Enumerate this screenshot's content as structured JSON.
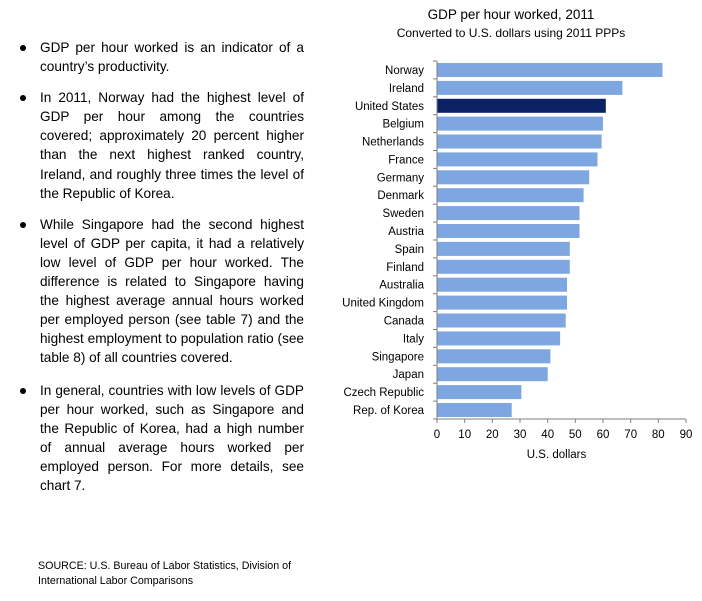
{
  "bullets": [
    "GDP per hour worked is an indicator of a country’s productivity.",
    "In 2011, Norway had the highest level of GDP per hour among the countries covered; approximately 20 percent higher than the next highest ranked country, Ireland, and roughly three times the level of the Republic of Korea.",
    "While Singapore had the second highest level of GDP per capita, it had a relatively low level of GDP per hour worked. The difference is related to Singapore having the highest average annual hours worked per employed person (see table 7) and the highest employment to population ratio (see table 8) of all countries covered.",
    "In general, countries with low levels of GDP per hour worked, such as Singapore and the Republic of Korea, had a high number of annual average hours worked per employed person. For more details, see chart 7."
  ],
  "source_line1": "SOURCE: U.S. Bureau of Labor Statistics, Division of",
  "source_line2": "International Labor Comparisons",
  "chart_data": {
    "type": "bar",
    "orientation": "horizontal",
    "title": "GDP per hour worked, 2011",
    "subtitle": "Converted to U.S. dollars using 2011 PPPs",
    "xlabel": "U.S. dollars",
    "ylabel": "",
    "xlim": [
      0,
      90
    ],
    "xticks": [
      "0",
      "10",
      "20",
      "30",
      "40",
      "50",
      "60",
      "70",
      "80",
      "90"
    ],
    "grid": false,
    "categories": [
      "Norway",
      "Ireland",
      "United States",
      "Belgium",
      "Netherlands",
      "France",
      "Germany",
      "Denmark",
      "Sweden",
      "Austria",
      "Spain",
      "Finland",
      "Australia",
      "United Kingdom",
      "Canada",
      "Italy",
      "Singapore",
      "Japan",
      "Czech Republic",
      "Rep. of Korea"
    ],
    "values": [
      81.5,
      67,
      61,
      60,
      59.5,
      58,
      55,
      53,
      51.5,
      51.5,
      48,
      48,
      47,
      47,
      46.5,
      44.5,
      41,
      40,
      30.5,
      27
    ],
    "highlight": "United States",
    "colors": {
      "bar": "#7ea6e0",
      "highlight": "#0b2265",
      "axis": "#7f7f7f"
    }
  }
}
